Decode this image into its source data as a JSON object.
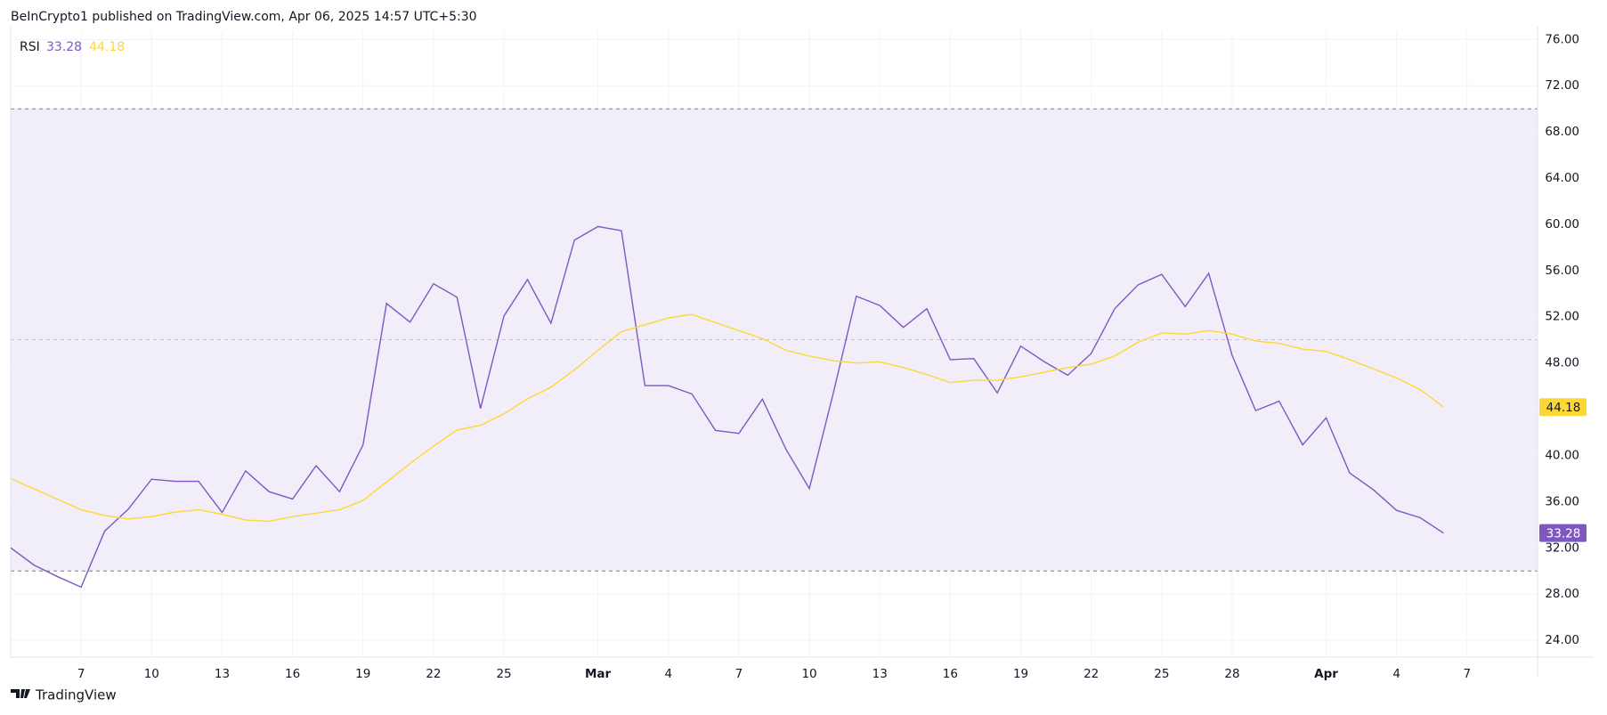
{
  "header": {
    "published": "BeInCrypto1 published on TradingView.com, Apr 06, 2025 14:57 UTC+5:30"
  },
  "footer": {
    "brand": "TradingView"
  },
  "chart_data": {
    "type": "line",
    "title": "RSI",
    "x": [
      "Feb 4",
      "Feb 5",
      "Feb 6",
      "Feb 7",
      "Feb 8",
      "Feb 9",
      "Feb 10",
      "Feb 11",
      "Feb 12",
      "Feb 13",
      "Feb 14",
      "Feb 15",
      "Feb 16",
      "Feb 17",
      "Feb 18",
      "Feb 19",
      "Feb 20",
      "Feb 21",
      "Feb 22",
      "Feb 23",
      "Feb 24",
      "Feb 25",
      "Feb 26",
      "Feb 27",
      "Feb 28",
      "Mar 1",
      "Mar 2",
      "Mar 3",
      "Mar 4",
      "Mar 5",
      "Mar 6",
      "Mar 7",
      "Mar 8",
      "Mar 9",
      "Mar 10",
      "Mar 11",
      "Mar 12",
      "Mar 13",
      "Mar 14",
      "Mar 15",
      "Mar 16",
      "Mar 17",
      "Mar 18",
      "Mar 19",
      "Mar 20",
      "Mar 21",
      "Mar 22",
      "Mar 23",
      "Mar 24",
      "Mar 25",
      "Mar 26",
      "Mar 27",
      "Mar 28",
      "Mar 29",
      "Mar 30",
      "Mar 31",
      "Apr 1",
      "Apr 2",
      "Apr 3",
      "Apr 4",
      "Apr 5",
      "Apr 6"
    ],
    "series": [
      {
        "color": "#7e57c2",
        "values": [
          32.0,
          30.5,
          29.5,
          28.6,
          33.45,
          35.33,
          37.94,
          37.76,
          37.76,
          35.06,
          38.66,
          36.86,
          36.23,
          39.11,
          36.86,
          40.91,
          53.15,
          51.53,
          54.86,
          53.69,
          44.06,
          52.07,
          55.22,
          51.44,
          58.64,
          59.81,
          59.45,
          46.04,
          46.04,
          45.32,
          42.17,
          41.9,
          44.87,
          40.55,
          37.13,
          45.23,
          53.78,
          52.97,
          51.08,
          52.7,
          48.29,
          48.38,
          45.41,
          49.46,
          48.11,
          46.94,
          48.83,
          52.7,
          54.77,
          55.67,
          52.88,
          55.76,
          48.65,
          43.88,
          44.69,
          40.91,
          43.25,
          38.48,
          37.04,
          35.24,
          34.61,
          33.28
        ],
        "value_labels": [
          null,
          null,
          null,
          null,
          null,
          null,
          null,
          null,
          null,
          null,
          null,
          null,
          null,
          null,
          null,
          null,
          null,
          null,
          null,
          null,
          null,
          null,
          null,
          null,
          null,
          null,
          null,
          null,
          null,
          null,
          null,
          null,
          null,
          null,
          null,
          null,
          null,
          null,
          null,
          null,
          null,
          null,
          null,
          null,
          null,
          null,
          null,
          null,
          null,
          null,
          null,
          null,
          null,
          null,
          null,
          null,
          null,
          null,
          null,
          null,
          null,
          "33.28"
        ]
      },
      {
        "color": "#fdd835",
        "values": [
          38.0,
          37.1,
          36.2,
          35.3,
          34.8,
          34.5,
          34.7,
          35.1,
          35.3,
          34.9,
          34.4,
          34.3,
          34.7,
          35.0,
          35.3,
          36.1,
          37.7,
          39.3,
          40.8,
          42.2,
          42.6,
          43.6,
          44.9,
          45.9,
          47.4,
          49.1,
          50.7,
          51.3,
          51.9,
          52.2,
          51.5,
          50.8,
          50.1,
          49.1,
          48.6,
          48.2,
          48.0,
          48.1,
          47.6,
          47.0,
          46.3,
          46.5,
          46.5,
          46.8,
          47.2,
          47.6,
          47.9,
          48.6,
          49.8,
          50.6,
          50.5,
          50.8,
          50.5,
          49.9,
          49.7,
          49.2,
          49.0,
          48.3,
          47.5,
          46.7,
          45.7,
          44.18
        ],
        "value_labels": [
          null,
          null,
          null,
          null,
          null,
          null,
          null,
          null,
          null,
          null,
          null,
          null,
          null,
          null,
          null,
          null,
          null,
          null,
          null,
          null,
          null,
          null,
          null,
          null,
          null,
          null,
          null,
          null,
          null,
          null,
          null,
          null,
          null,
          null,
          null,
          null,
          null,
          null,
          null,
          null,
          null,
          null,
          null,
          null,
          null,
          null,
          null,
          null,
          null,
          null,
          null,
          null,
          null,
          null,
          null,
          null,
          null,
          null,
          null,
          null,
          null,
          "44.18"
        ]
      }
    ],
    "bands": {
      "upper": 70,
      "middle": 50,
      "lower": 30,
      "fill": "rgba(126,87,194,0.1)",
      "line_color": "#787b86"
    },
    "ylim": [
      22.54,
      76.72
    ],
    "yticks": [
      {
        "value": 24,
        "label": "24.00"
      },
      {
        "value": 28,
        "label": "28.00"
      },
      {
        "value": 32,
        "label": "32.00"
      },
      {
        "value": 36,
        "label": "36.00"
      },
      {
        "value": 40,
        "label": "40.00"
      },
      {
        "value": 44,
        "label": "44.00"
      },
      {
        "value": 48,
        "label": "48.00"
      },
      {
        "value": 52,
        "label": "52.00"
      },
      {
        "value": 56,
        "label": "56.00"
      },
      {
        "value": 60,
        "label": "60.00"
      },
      {
        "value": 64,
        "label": "64.00"
      },
      {
        "value": 68,
        "label": "68.00"
      },
      {
        "value": 72,
        "label": "72.00"
      },
      {
        "value": 76,
        "label": "76.00"
      }
    ],
    "xlim": [
      "Feb 4",
      "Apr 10"
    ],
    "xticks": [
      {
        "value": "Feb 7",
        "label": "7"
      },
      {
        "value": "Feb 10",
        "label": "10"
      },
      {
        "value": "Feb 13",
        "label": "13"
      },
      {
        "value": "Feb 16",
        "label": "16"
      },
      {
        "value": "Feb 19",
        "label": "19"
      },
      {
        "value": "Feb 22",
        "label": "22"
      },
      {
        "value": "Feb 25",
        "label": "25"
      },
      {
        "value": "Mar 1",
        "label": "Mar"
      },
      {
        "value": "Mar 4",
        "label": "4"
      },
      {
        "value": "Mar 7",
        "label": "7"
      },
      {
        "value": "Mar 10",
        "label": "10"
      },
      {
        "value": "Mar 13",
        "label": "13"
      },
      {
        "value": "Mar 16",
        "label": "16"
      },
      {
        "value": "Mar 19",
        "label": "19"
      },
      {
        "value": "Mar 22",
        "label": "22"
      },
      {
        "value": "Mar 25",
        "label": "25"
      },
      {
        "value": "Mar 28",
        "label": "28"
      },
      {
        "value": "Apr 1",
        "label": "Apr"
      },
      {
        "value": "Apr 4",
        "label": "4"
      },
      {
        "value": "Apr 7",
        "label": "7"
      }
    ],
    "grid": true
  }
}
